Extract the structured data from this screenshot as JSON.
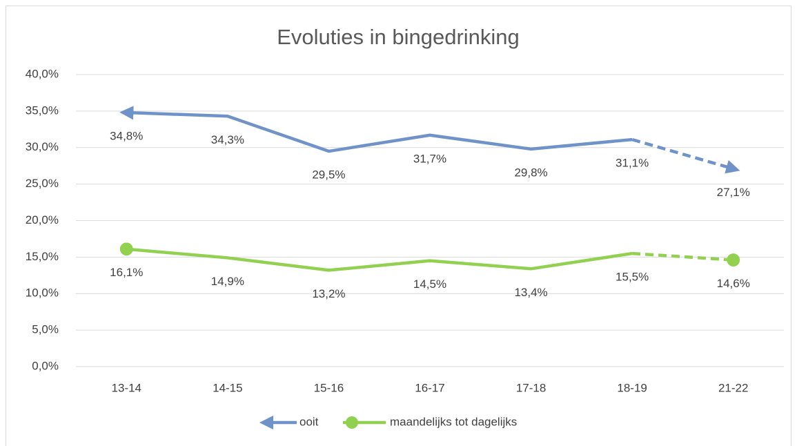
{
  "chart_data": {
    "type": "line",
    "title": "Evoluties in bingedrinking",
    "categories": [
      "13-14",
      "14-15",
      "15-16",
      "16-17",
      "17-18",
      "18-19",
      "21-22"
    ],
    "series": [
      {
        "name": "ooit",
        "color": "#6f93c8",
        "marker": "arrow",
        "values": [
          34.8,
          34.3,
          29.5,
          31.7,
          29.8,
          31.1,
          27.1
        ],
        "value_labels": [
          "34,8%",
          "34,3%",
          "29,5%",
          "31,7%",
          "29,8%",
          "31,1%",
          "27,1%"
        ]
      },
      {
        "name": "maandelijks tot dagelijks",
        "color": "#92d050",
        "marker": "circle",
        "values": [
          16.1,
          14.9,
          13.2,
          14.5,
          13.4,
          15.5,
          14.6
        ],
        "value_labels": [
          "16,1%",
          "14,9%",
          "13,2%",
          "14,5%",
          "13,4%",
          "15,5%",
          "14,6%"
        ]
      }
    ],
    "ylim": [
      0,
      40
    ],
    "yticks": [
      {
        "value": 0,
        "label": "0,0%"
      },
      {
        "value": 5,
        "label": "5,0%"
      },
      {
        "value": 10,
        "label": "10,0%"
      },
      {
        "value": 15,
        "label": "15,0%"
      },
      {
        "value": 20,
        "label": "20,0%"
      },
      {
        "value": 25,
        "label": "25,0%"
      },
      {
        "value": 30,
        "label": "30,0%"
      },
      {
        "value": 35,
        "label": "35,0%"
      },
      {
        "value": 40,
        "label": "40,0%"
      }
    ],
    "grid": true,
    "legend": "bottom"
  }
}
